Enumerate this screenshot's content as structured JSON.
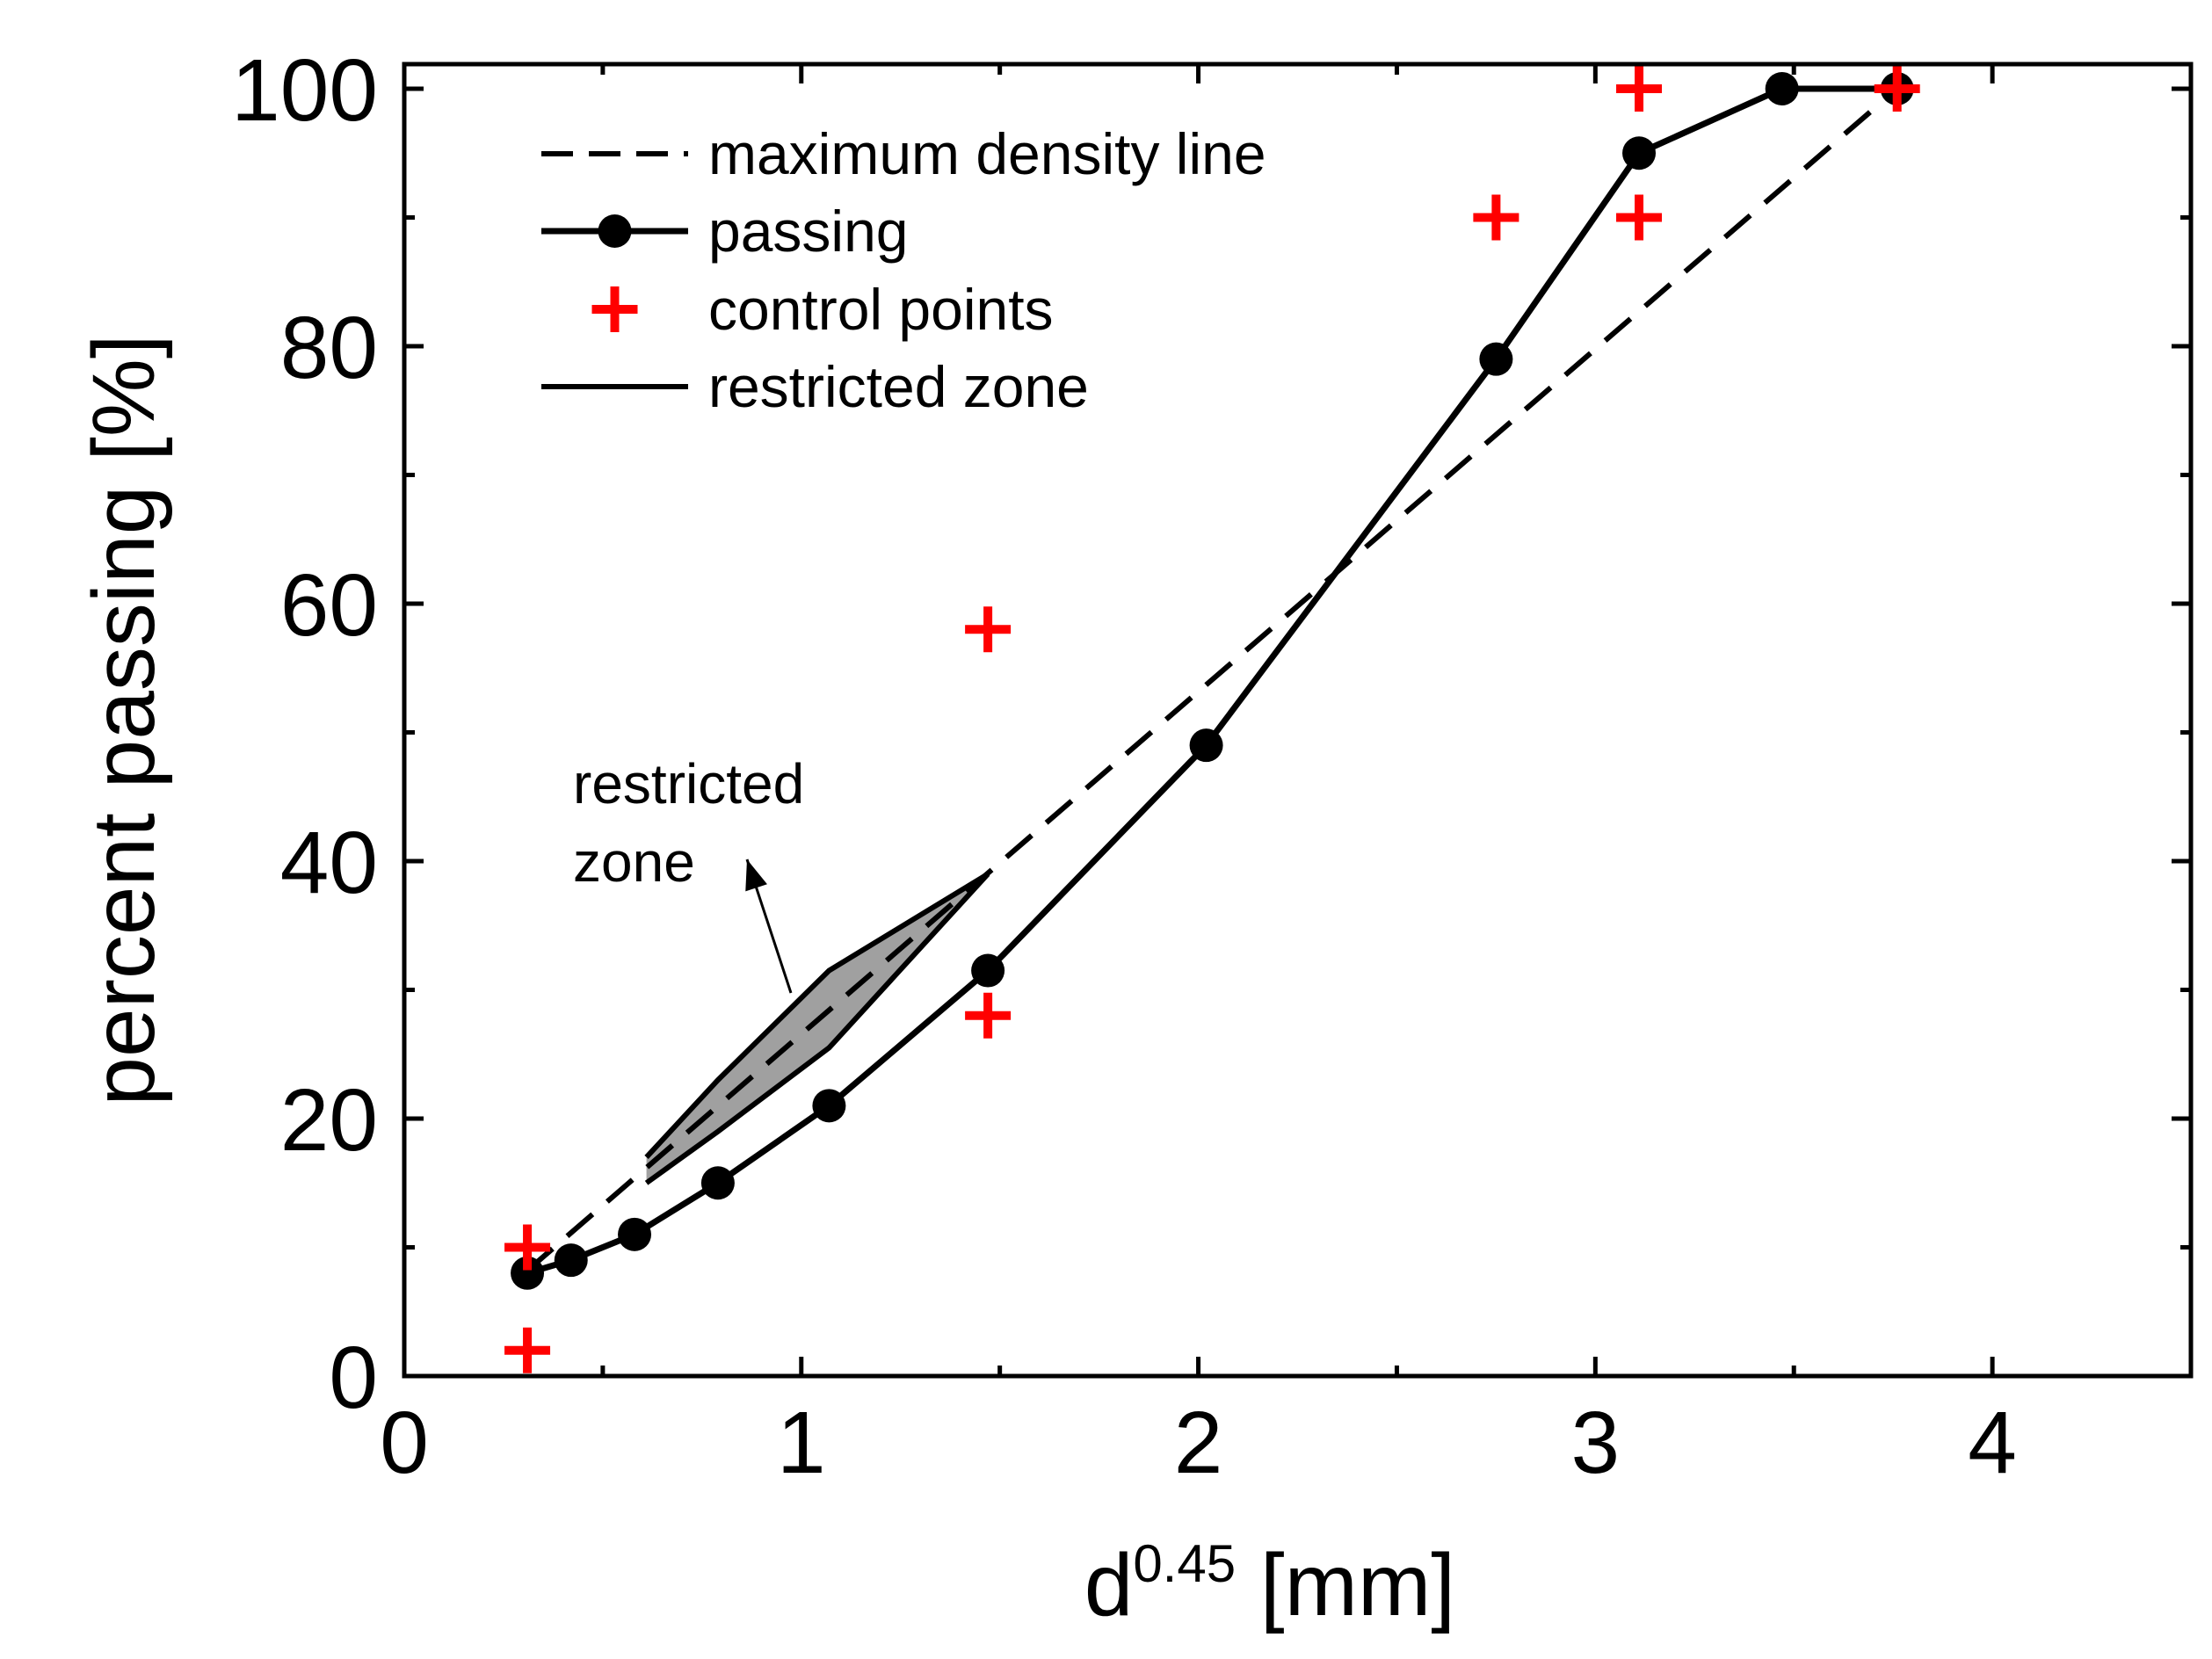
{
  "chart_data": {
    "type": "line",
    "xlabel": "d",
    "xlabel_sup": "0.45",
    "xlabel_unit": " [mm]",
    "ylabel": "percent passing [%]",
    "xlim": [
      0,
      4.5
    ],
    "ylim": [
      0,
      100
    ],
    "x_ticks": [
      {
        "value": 0,
        "label": "0"
      },
      {
        "value": 1,
        "label": "1"
      },
      {
        "value": 2,
        "label": "2"
      },
      {
        "value": 3,
        "label": "3"
      },
      {
        "value": 4,
        "label": "4"
      }
    ],
    "x_minor_ticks": [
      0.5,
      1.5,
      2.5,
      3.5
    ],
    "y_ticks": [
      {
        "value": 0,
        "label": "0"
      },
      {
        "value": 20,
        "label": "20"
      },
      {
        "value": 40,
        "label": "40"
      },
      {
        "value": 60,
        "label": "60"
      },
      {
        "value": 80,
        "label": "80"
      },
      {
        "value": 100,
        "label": "100"
      }
    ],
    "y_minor_ticks": [
      10,
      30,
      50,
      70,
      90
    ],
    "grid": false,
    "legend_position": "top-left",
    "legend": [
      {
        "label": "maximum density line",
        "style": "dashed"
      },
      {
        "label": "passing",
        "style": "line-marker"
      },
      {
        "label": "control points",
        "style": "plus"
      },
      {
        "label": "restricted zone",
        "style": "solid"
      }
    ],
    "series": [
      {
        "name": "maximum density line",
        "style": "dashed",
        "x": [
          0.31,
          3.76
        ],
        "y": [
          8.2,
          100
        ]
      },
      {
        "name": "passing",
        "style": "line-marker",
        "x": [
          0.31,
          0.42,
          0.58,
          0.79,
          1.07,
          1.47,
          2.02,
          2.75,
          3.11,
          3.47,
          3.76
        ],
        "y": [
          8,
          9,
          11,
          15,
          21,
          31.5,
          49,
          79,
          95,
          100,
          100
        ]
      },
      {
        "name": "control points",
        "style": "plus",
        "x": [
          0.31,
          0.31,
          1.47,
          1.47,
          2.75,
          3.11,
          3.11,
          3.76
        ],
        "y": [
          10,
          2,
          58,
          28,
          90,
          90,
          100,
          100
        ]
      },
      {
        "name": "restricted zone",
        "style": "solid",
        "upper": {
          "x": [
            0.61,
            0.79,
            1.07,
            1.47
          ],
          "y": [
            17,
            23,
            31.5,
            39
          ]
        },
        "lower": {
          "x": [
            0.61,
            0.79,
            1.07,
            1.47
          ],
          "y": [
            15,
            19,
            25.5,
            39
          ]
        }
      }
    ],
    "annotation": {
      "lines": [
        "restricted",
        "zone"
      ]
    },
    "colors": {
      "line": "#000000",
      "control": "#ff0000",
      "zone_fill": "#a0a0a0"
    }
  }
}
